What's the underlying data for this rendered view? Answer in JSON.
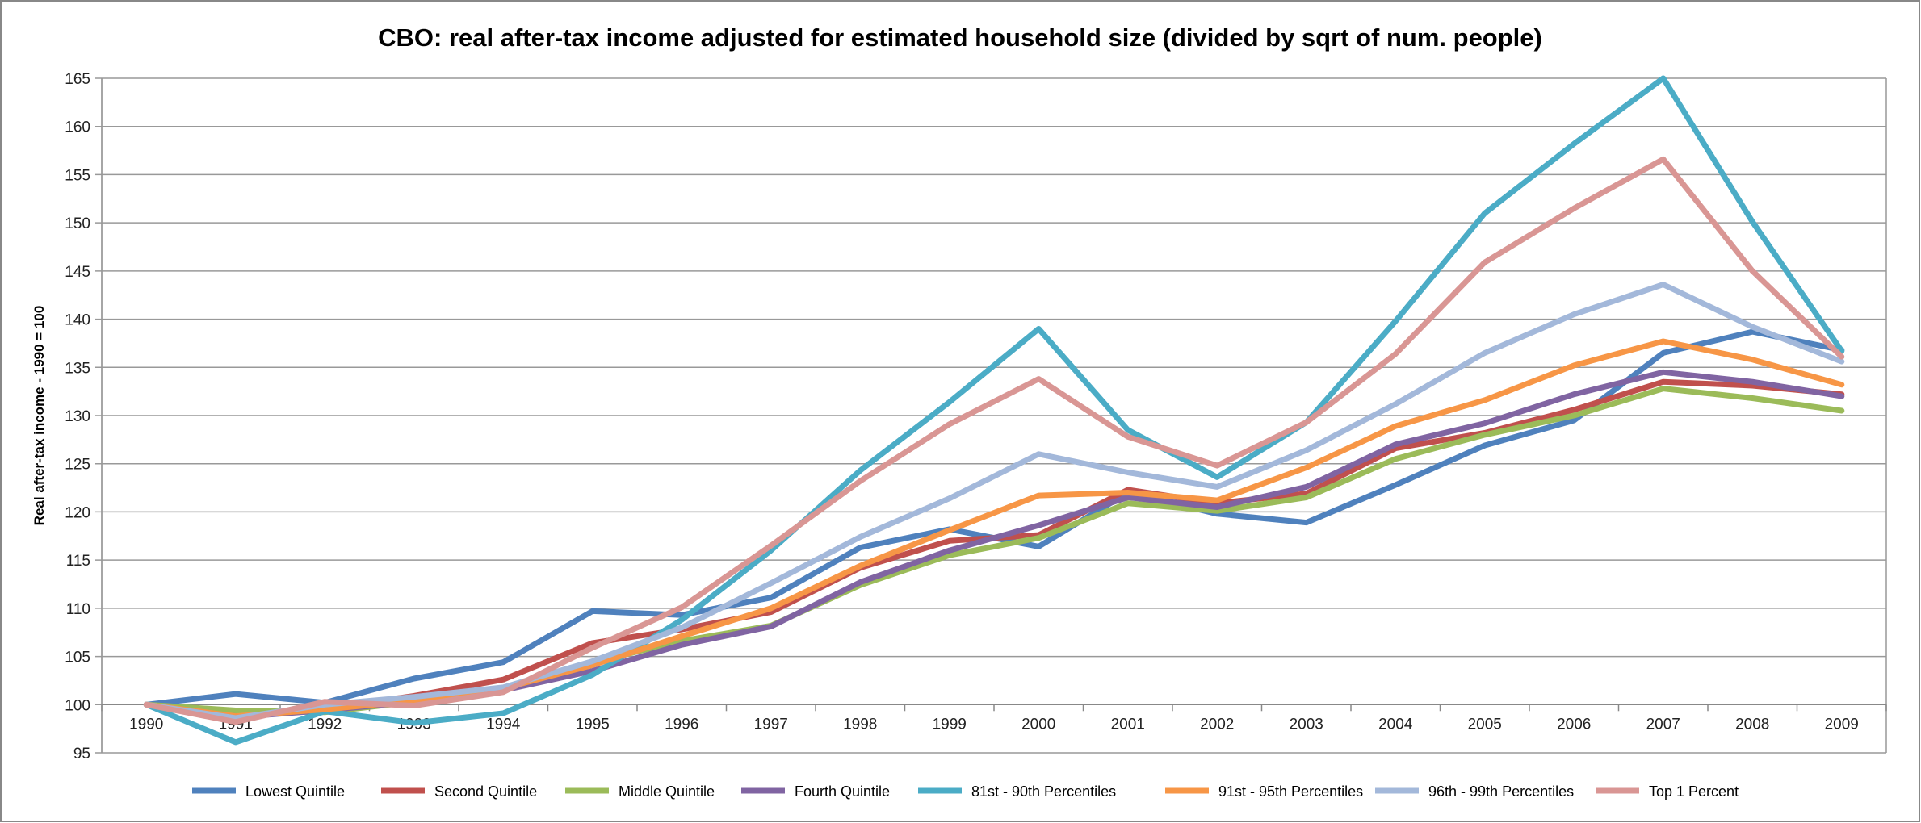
{
  "chart_data": {
    "type": "line",
    "title": "CBO: real after-tax income adjusted for estimated household size (divided by sqrt of num. people)",
    "xlabel": "",
    "ylabel": "Real after-tax income - 1990 = 100",
    "ylim": [
      95,
      165
    ],
    "ytick_step": 5,
    "yticks": [
      "95",
      "100",
      "105",
      "110",
      "115",
      "120",
      "125",
      "130",
      "135",
      "140",
      "145",
      "150",
      "155",
      "160",
      "165"
    ],
    "x_axis_crosses_at": 100,
    "grid": true,
    "legend_position": "bottom",
    "categories": [
      "1990",
      "1991",
      "1992",
      "1993",
      "1994",
      "1995",
      "1996",
      "1997",
      "1998",
      "1999",
      "2000",
      "2001",
      "2002",
      "2003",
      "2004",
      "2005",
      "2006",
      "2007",
      "2008",
      "2009"
    ],
    "series": [
      {
        "name": "Lowest Quintile",
        "color": "#4F81BD",
        "values": [
          100,
          101.1,
          100.2,
          102.7,
          104.4,
          109.7,
          109.3,
          111.1,
          116.3,
          118.2,
          116.4,
          122.0,
          119.8,
          118.9,
          122.8,
          126.9,
          129.5,
          136.5,
          138.7,
          136.8
        ]
      },
      {
        "name": "Second Quintile",
        "color": "#C0504D",
        "values": [
          100,
          98.9,
          99.6,
          100.9,
          102.6,
          106.4,
          107.8,
          109.6,
          114.2,
          117.0,
          117.6,
          122.3,
          120.9,
          121.9,
          126.6,
          128.2,
          130.6,
          133.5,
          133.1,
          132.2
        ]
      },
      {
        "name": "Middle Quintile",
        "color": "#9BBB59",
        "values": [
          100,
          99.4,
          99.2,
          100.3,
          101.5,
          104.4,
          106.6,
          108.2,
          112.4,
          115.5,
          117.3,
          120.9,
          120.1,
          121.5,
          125.5,
          128.0,
          130.0,
          132.8,
          131.8,
          130.5
        ]
      },
      {
        "name": "Fourth Quintile",
        "color": "#8064A2",
        "values": [
          100,
          98.7,
          99.4,
          100.3,
          101.5,
          103.5,
          106.2,
          108.1,
          112.7,
          116.0,
          118.6,
          121.5,
          120.5,
          122.6,
          127.0,
          129.2,
          132.2,
          134.5,
          133.5,
          132.0
        ]
      },
      {
        "name": "81st - 90th  Percentiles",
        "color": "#4BACC6",
        "values": [
          100,
          96.1,
          99.3,
          98.1,
          99.1,
          103.1,
          108.8,
          116.0,
          124.3,
          131.4,
          139.0,
          128.5,
          123.6,
          129.3,
          139.8,
          151.0,
          158.2,
          165.0,
          150.1,
          136.7
        ]
      },
      {
        "name": "91st - 95th Percentiles",
        "color": "#F79646",
        "values": [
          100,
          98.8,
          99.5,
          100.4,
          101.7,
          104.1,
          107.1,
          110.0,
          114.4,
          118.1,
          121.7,
          122.0,
          121.2,
          124.6,
          128.9,
          131.6,
          135.2,
          137.7,
          135.8,
          133.2
        ]
      },
      {
        "name": "96th - 99th Percentiles",
        "color": "#A3B8DA",
        "values": [
          100,
          98.6,
          100.0,
          100.8,
          101.8,
          104.5,
          108.0,
          112.6,
          117.4,
          121.4,
          126.0,
          124.1,
          122.6,
          126.4,
          131.2,
          136.5,
          140.5,
          143.6,
          139.2,
          135.6
        ]
      },
      {
        "name": "Top 1 Percent",
        "color": "#D99694",
        "values": [
          100,
          98.2,
          100.3,
          99.9,
          101.3,
          105.9,
          110.1,
          116.5,
          123.2,
          129.1,
          133.8,
          127.8,
          124.8,
          129.3,
          136.4,
          145.9,
          151.5,
          156.6,
          145.0,
          136.1
        ]
      }
    ]
  }
}
